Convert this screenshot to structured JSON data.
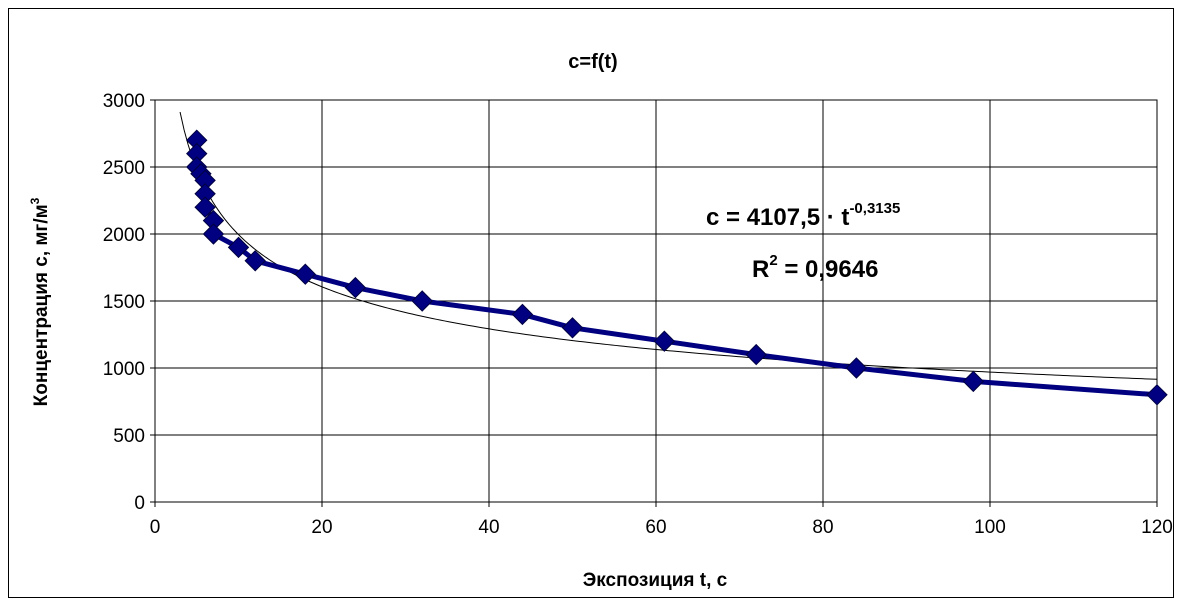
{
  "chart_data": {
    "type": "scatter",
    "title": "c=f(t)",
    "xlabel": "Экспозиция  t, c",
    "ylabel_main": "Концентрация   с,  мг/м",
    "ylabel_sup": "3",
    "xlim": [
      0,
      120
    ],
    "ylim": [
      0,
      3000
    ],
    "xticks": [
      0,
      20,
      40,
      60,
      80,
      100,
      120
    ],
    "yticks": [
      0,
      500,
      1000,
      1500,
      2000,
      2500,
      3000
    ],
    "grid": true,
    "series": [
      {
        "color": "#000080",
        "marker": "diamond",
        "points": [
          {
            "x": 5,
            "y": 2700
          },
          {
            "x": 5,
            "y": 2600
          },
          {
            "x": 5,
            "y": 2500
          },
          {
            "x": 5.5,
            "y": 2450
          },
          {
            "x": 6,
            "y": 2400
          },
          {
            "x": 6,
            "y": 2300
          },
          {
            "x": 6,
            "y": 2200
          },
          {
            "x": 7,
            "y": 2100
          },
          {
            "x": 7,
            "y": 2000
          },
          {
            "x": 10,
            "y": 1900
          },
          {
            "x": 12,
            "y": 1800
          },
          {
            "x": 18,
            "y": 1700
          },
          {
            "x": 24,
            "y": 1600
          },
          {
            "x": 32,
            "y": 1500
          },
          {
            "x": 44,
            "y": 1400
          },
          {
            "x": 50,
            "y": 1300
          },
          {
            "x": 61,
            "y": 1200
          },
          {
            "x": 72,
            "y": 1100
          },
          {
            "x": 84,
            "y": 1000
          },
          {
            "x": 98,
            "y": 900
          },
          {
            "x": 120,
            "y": 800
          }
        ]
      }
    ],
    "trendline": {
      "type": "power",
      "a": 4107.5,
      "b": -0.3135,
      "color": "#000000",
      "x_range": [
        3,
        120
      ]
    },
    "annotations": {
      "equation_main": "c = 4107,5 · t",
      "equation_exp": "-0,3135",
      "r2_main": "R",
      "r2_sup": "2",
      "r2_value": " = 0,9646"
    }
  }
}
